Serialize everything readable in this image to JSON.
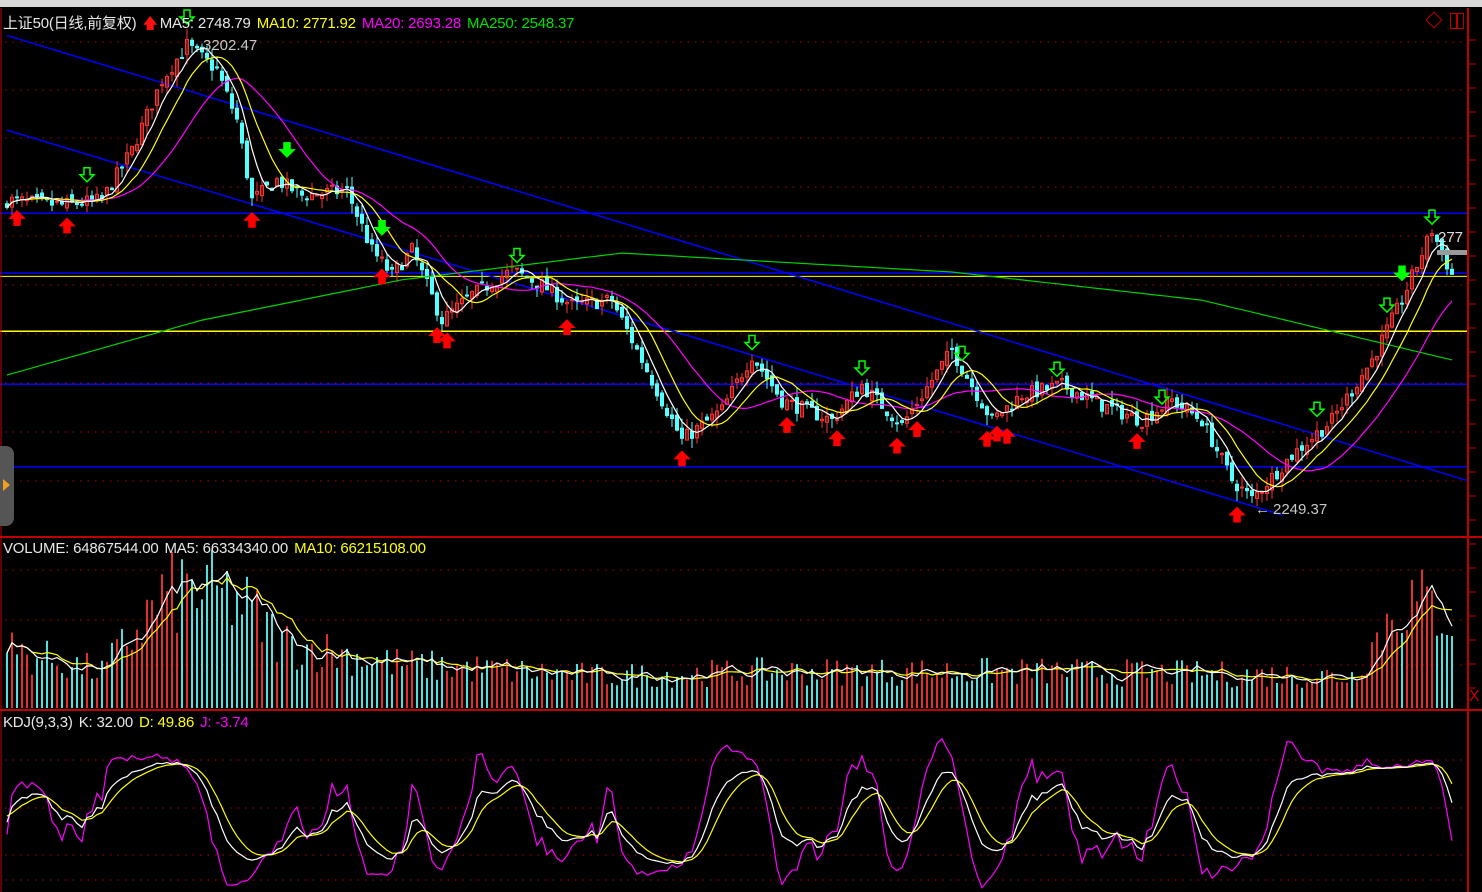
{
  "header": {
    "symbol": "上证50(日线,前复权)",
    "ma5": "MA5: 2748.79",
    "ma10": "MA10: 2771.92",
    "ma20": "MA20: 2693.28",
    "ma250": "MA250: 2548.37"
  },
  "volume_header": {
    "volume": "VOLUME: 64867544.00",
    "ma5": "MA5: 66334340.00",
    "ma10": "MA10: 66215108.00"
  },
  "kdj_header": {
    "name": "KDJ(9,3,3)",
    "k": "K: 32.00",
    "d": "D: 49.86",
    "j": "J: -3.74"
  },
  "price_labels": {
    "high": "3202.47",
    "low": "2249.37",
    "last_partial": "277"
  },
  "colors": {
    "up": "#ff3232",
    "down": "#54ffff",
    "ma5": "#ffffff",
    "ma10": "#ffff00",
    "ma20": "#ff00ff",
    "ma250": "#00d000",
    "trend": "#0000ff",
    "grid": "#c00000",
    "signal_buy": "#ff0000",
    "signal_sell": "#00ff00"
  },
  "chart_data": {
    "type": "candlestick",
    "title": "上证50(日线,前复权)",
    "ylim": [
      2230,
      3220
    ],
    "high": 3202.47,
    "low": 2249.37,
    "close_keypoints": [
      {
        "i": 0,
        "close": 2877
      },
      {
        "i": 11,
        "close": 2867
      },
      {
        "i": 19,
        "close": 2877
      },
      {
        "i": 25,
        "close": 2980
      },
      {
        "i": 31,
        "close": 3124
      },
      {
        "i": 36,
        "close": 3196
      },
      {
        "i": 42,
        "close": 3145
      },
      {
        "i": 46,
        "close": 3042
      },
      {
        "i": 49,
        "close": 2877
      },
      {
        "i": 54,
        "close": 2918
      },
      {
        "i": 59,
        "close": 2887
      },
      {
        "i": 68,
        "close": 2897
      },
      {
        "i": 73,
        "close": 2774
      },
      {
        "i": 77,
        "close": 2723
      },
      {
        "i": 81,
        "close": 2774
      },
      {
        "i": 87,
        "close": 2630
      },
      {
        "i": 93,
        "close": 2682
      },
      {
        "i": 101,
        "close": 2733
      },
      {
        "i": 107,
        "close": 2702
      },
      {
        "i": 113,
        "close": 2661
      },
      {
        "i": 121,
        "close": 2671
      },
      {
        "i": 127,
        "close": 2548
      },
      {
        "i": 135,
        "close": 2383
      },
      {
        "i": 143,
        "close": 2445
      },
      {
        "i": 149,
        "close": 2558
      },
      {
        "i": 155,
        "close": 2465
      },
      {
        "i": 165,
        "close": 2424
      },
      {
        "i": 171,
        "close": 2496
      },
      {
        "i": 179,
        "close": 2414
      },
      {
        "i": 189,
        "close": 2568
      },
      {
        "i": 197,
        "close": 2424
      },
      {
        "i": 203,
        "close": 2476
      },
      {
        "i": 211,
        "close": 2496
      },
      {
        "i": 219,
        "close": 2455
      },
      {
        "i": 227,
        "close": 2424
      },
      {
        "i": 233,
        "close": 2465
      },
      {
        "i": 239,
        "close": 2424
      },
      {
        "i": 245,
        "close": 2301
      },
      {
        "i": 249,
        "close": 2262
      },
      {
        "i": 257,
        "close": 2352
      },
      {
        "i": 265,
        "close": 2424
      },
      {
        "i": 273,
        "close": 2548
      },
      {
        "i": 279,
        "close": 2671
      },
      {
        "i": 285,
        "close": 2815
      },
      {
        "i": 289,
        "close": 2723
      }
    ],
    "ma250_keypoints": [
      {
        "i": 0,
        "value": 2517
      },
      {
        "i": 39,
        "value": 2630
      },
      {
        "i": 79,
        "value": 2713
      },
      {
        "i": 123,
        "value": 2768
      },
      {
        "i": 189,
        "value": 2729
      },
      {
        "i": 239,
        "value": 2671
      },
      {
        "i": 289,
        "value": 2548
      }
    ],
    "volume_keypoints_millions": [
      {
        "i": 0,
        "value": 40
      },
      {
        "i": 19,
        "value": 25
      },
      {
        "i": 31,
        "value": 75
      },
      {
        "i": 36,
        "value": 82
      },
      {
        "i": 46,
        "value": 75
      },
      {
        "i": 55,
        "value": 45
      },
      {
        "i": 79,
        "value": 30
      },
      {
        "i": 119,
        "value": 22
      },
      {
        "i": 151,
        "value": 25
      },
      {
        "i": 209,
        "value": 25
      },
      {
        "i": 269,
        "value": 22
      },
      {
        "i": 279,
        "value": 75
      },
      {
        "i": 289,
        "value": 65
      }
    ],
    "horizontal_levels": [
      2850,
      2727,
      2498,
      2328
    ],
    "yellow_level": 2607,
    "trend_lines": [
      {
        "from": {
          "i": 0,
          "price": 3216
        },
        "to": {
          "i": 292,
          "price": 2300
        }
      },
      {
        "from": {
          "i": 0,
          "price": 3021
        },
        "to": {
          "i": 255,
          "price": 2229
        }
      }
    ],
    "buy_signals": [
      2,
      12,
      49,
      75,
      86,
      88,
      112,
      135,
      156,
      166,
      178,
      182,
      196,
      198,
      200,
      226,
      246
    ],
    "sell_signals_hollow": [
      16,
      36,
      102,
      149,
      171,
      191,
      210,
      231,
      262,
      276,
      285
    ],
    "sell_signals_filled": [
      56,
      75,
      279
    ],
    "kdj_params": [
      9,
      3,
      3
    ]
  }
}
